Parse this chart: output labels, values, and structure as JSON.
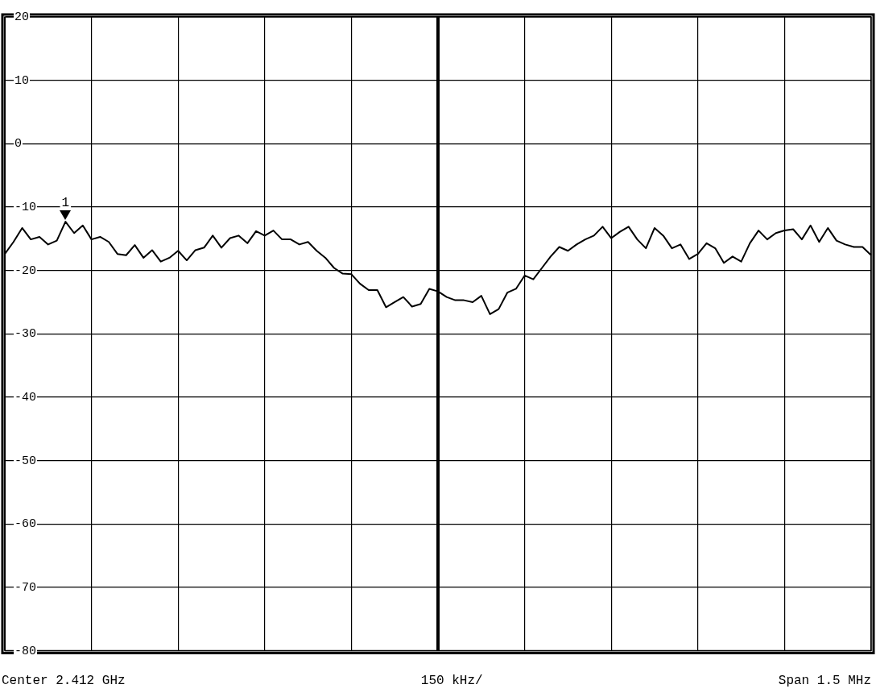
{
  "chart_data": {
    "type": "line",
    "categories": [
      null,
      null,
      null,
      null,
      null,
      null,
      null,
      null,
      null,
      null,
      null,
      null,
      null,
      null,
      null,
      null,
      null,
      null,
      null,
      null,
      null,
      null,
      null,
      null,
      null,
      null,
      null,
      null,
      null,
      null,
      null,
      null,
      null,
      null,
      null,
      null,
      null,
      null,
      null,
      null,
      null,
      null,
      null,
      null,
      null,
      null,
      null,
      null,
      null,
      null,
      null,
      null,
      null,
      null,
      null,
      null,
      null,
      null,
      null,
      null,
      null,
      null,
      null,
      null,
      null,
      null,
      null,
      null,
      null,
      null,
      null,
      null,
      null,
      null,
      null,
      null,
      null,
      null,
      null,
      null,
      null,
      null,
      null,
      null,
      null,
      null,
      null,
      null,
      null,
      null,
      null,
      null,
      null,
      null,
      null,
      null,
      null,
      null,
      null,
      null,
      null
    ],
    "values": [
      -17.4,
      -15.5,
      -13.3,
      -15.1,
      -14.7,
      -15.9,
      -15.3,
      -12.3,
      -14.1,
      -12.9,
      -15.1,
      -14.7,
      -15.5,
      -17.4,
      -17.6,
      -16,
      -18,
      -16.8,
      -18.6,
      -18,
      -16.9,
      -18.4,
      -16.8,
      -16.4,
      -14.5,
      -16.4,
      -14.9,
      -14.5,
      -15.7,
      -13.8,
      -14.5,
      -13.7,
      -15.1,
      -15.1,
      -15.9,
      -15.5,
      -16.9,
      -18,
      -19.6,
      -20.5,
      -20.6,
      -22.1,
      -23.1,
      -23.1,
      -25.8,
      -25,
      -24.2,
      -25.7,
      -25.3,
      -22.9,
      -23.3,
      -24.2,
      -24.7,
      -24.7,
      -25,
      -24,
      -26.9,
      -26.1,
      -23.5,
      -22.9,
      -20.8,
      -21.4,
      -19.6,
      -17.8,
      -16.3,
      -16.9,
      -15.9,
      -15.1,
      -14.5,
      -13.1,
      -14.9,
      -13.9,
      -13.1,
      -15.1,
      -16.5,
      -13.3,
      -14.5,
      -16.5,
      -15.9,
      -18.2,
      -17.4,
      -15.7,
      -16.5,
      -18.8,
      -17.8,
      -18.6,
      -15.7,
      -13.7,
      -15.1,
      -14.1,
      -13.7,
      -13.5,
      -15.1,
      -12.9,
      -15.5,
      -13.3,
      -15.3,
      -15.9,
      -16.3,
      -16.3,
      -17.6
    ],
    "color": "#000000",
    "ylim": [
      -80,
      20
    ],
    "yticks": [
      -80,
      -70,
      -60,
      -50,
      -40,
      -30,
      -20,
      -10,
      0,
      10,
      20
    ],
    "grid": true,
    "legend": false,
    "marker": "none",
    "line_style": "solid",
    "annotations": [
      {
        "text": "1",
        "y": -12.3
      },
      "Center 2.412 GHz",
      "150 kHz/",
      "Span 1.5 MHz"
    ]
  }
}
